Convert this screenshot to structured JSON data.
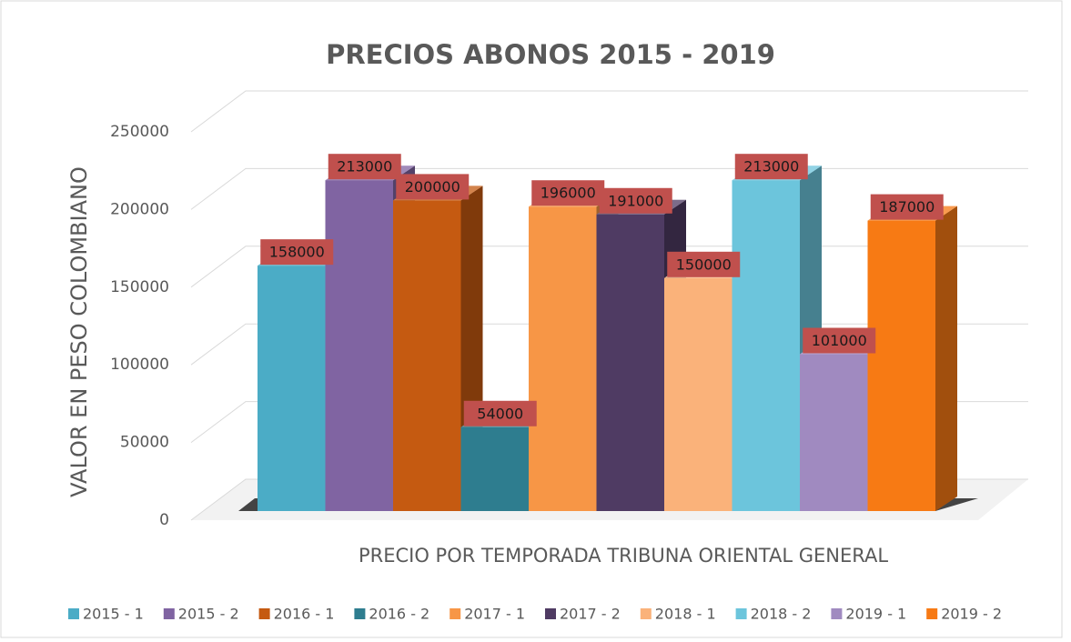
{
  "chart_data": {
    "type": "bar3d",
    "title": "PRECIOS ABONOS 2015 - 2019",
    "x_label": "PRECIO POR TEMPORADA TRIBUNA ORIENTAL GENERAL",
    "y_label": "VALOR EN PESO COLOMBIANO",
    "categories": [
      null
    ],
    "series": [
      {
        "name": "2015 - 1",
        "color": "#4bacc6",
        "values": [
          158000
        ]
      },
      {
        "name": "2015 - 2",
        "color": "#8064a2",
        "values": [
          213000
        ]
      },
      {
        "name": "2016 - 1",
        "color": "#c55a11",
        "values": [
          200000
        ]
      },
      {
        "name": "2016 - 2",
        "color": "#2e7d8f",
        "values": [
          54000
        ]
      },
      {
        "name": "2017 - 1",
        "color": "#f79646",
        "values": [
          196000
        ]
      },
      {
        "name": "2017 - 2",
        "color": "#4f3b63",
        "values": [
          191000
        ]
      },
      {
        "name": "2018 - 1",
        "color": "#fab27a",
        "values": [
          150000
        ]
      },
      {
        "name": "2018 - 2",
        "color": "#6cc5dc",
        "values": [
          213000
        ]
      },
      {
        "name": "2019 - 1",
        "color": "#a08ac0",
        "values": [
          101000
        ]
      },
      {
        "name": "2019 - 2",
        "color": "#f77a14",
        "values": [
          187000
        ]
      }
    ],
    "ylim": [
      0,
      250000
    ],
    "yticks": [
      0,
      50000,
      100000,
      150000,
      200000,
      250000
    ],
    "grid": true,
    "legend": "bottom"
  }
}
